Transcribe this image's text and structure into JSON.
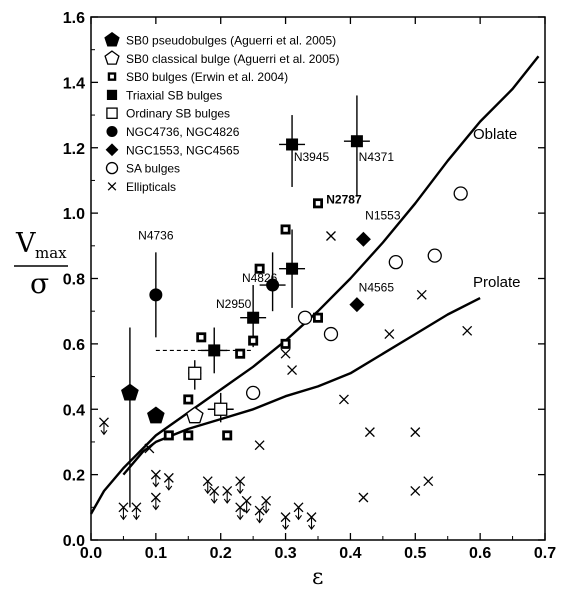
{
  "chart_data": {
    "type": "scatter",
    "xlabel": "ε",
    "ylabel": {
      "numerator": "V",
      "subscript": "max",
      "denominator": "σ"
    },
    "xlim": [
      0.0,
      0.7
    ],
    "ylim": [
      0.0,
      1.6
    ],
    "xticks": [
      "0.0",
      "0.1",
      "0.2",
      "0.3",
      "0.4",
      "0.5",
      "0.6",
      "0.7"
    ],
    "yticks": [
      "0.0",
      "0.2",
      "0.4",
      "0.6",
      "0.8",
      "1.0",
      "1.2",
      "1.4",
      "1.6"
    ],
    "xtick_values": [
      0.0,
      0.1,
      0.2,
      0.3,
      0.4,
      0.5,
      0.6,
      0.7
    ],
    "ytick_values": [
      0.0,
      0.2,
      0.4,
      0.6,
      0.8,
      1.0,
      1.2,
      1.4,
      1.6
    ],
    "grid": false,
    "legend_position": "top-left",
    "legend": [
      {
        "marker": "filled-pentagon",
        "label": "SB0 pseudobulges  (Aguerri et al. 2005)"
      },
      {
        "marker": "open-pentagon",
        "label": "SB0 classical bulge (Aguerri et al. 2005)"
      },
      {
        "marker": "dot-square",
        "label": "SB0 bulges (Erwin et al. 2004)"
      },
      {
        "marker": "filled-square",
        "label": "Triaxial SB bulges"
      },
      {
        "marker": "open-square",
        "label": "Ordinary SB bulges"
      },
      {
        "marker": "filled-circle",
        "label": "NGC4736, NGC4826"
      },
      {
        "marker": "filled-diamond",
        "label": "NGC1553, NGC4565"
      },
      {
        "marker": "open-circle",
        "label": "SA bulges"
      },
      {
        "marker": "cross",
        "label": "Ellipticals"
      }
    ],
    "curves": [
      {
        "label": "Oblate",
        "points": [
          [
            0.0,
            0.08
          ],
          [
            0.02,
            0.15
          ],
          [
            0.05,
            0.22
          ],
          [
            0.08,
            0.28
          ],
          [
            0.1,
            0.32
          ],
          [
            0.15,
            0.39
          ],
          [
            0.2,
            0.46
          ],
          [
            0.25,
            0.53
          ],
          [
            0.3,
            0.61
          ],
          [
            0.35,
            0.7
          ],
          [
            0.4,
            0.8
          ],
          [
            0.45,
            0.91
          ],
          [
            0.5,
            1.03
          ],
          [
            0.55,
            1.16
          ],
          [
            0.6,
            1.28
          ],
          [
            0.65,
            1.38
          ],
          [
            0.69,
            1.48
          ]
        ]
      },
      {
        "label": "Prolate",
        "points": [
          [
            0.05,
            0.2
          ],
          [
            0.08,
            0.27
          ],
          [
            0.1,
            0.3
          ],
          [
            0.15,
            0.34
          ],
          [
            0.2,
            0.37
          ],
          [
            0.25,
            0.4
          ],
          [
            0.3,
            0.44
          ],
          [
            0.35,
            0.47
          ],
          [
            0.4,
            0.51
          ],
          [
            0.45,
            0.57
          ],
          [
            0.5,
            0.63
          ],
          [
            0.55,
            0.69
          ],
          [
            0.6,
            0.74
          ]
        ]
      }
    ],
    "series": [
      {
        "name": "SB0 pseudobulges  (Aguerri et al. 2005)",
        "marker": "filled-pentagon",
        "points": [
          {
            "x": 0.06,
            "y": 0.45,
            "yerr": [
              0.1,
              0.65
            ]
          },
          {
            "x": 0.1,
            "y": 0.38
          }
        ]
      },
      {
        "name": "SB0 classical bulge (Aguerri et al. 2005)",
        "marker": "open-pentagon",
        "points": [
          {
            "x": 0.16,
            "y": 0.38
          }
        ]
      },
      {
        "name": "SB0 bulges (Erwin et al. 2004)",
        "marker": "dot-square",
        "points": [
          {
            "x": 0.12,
            "y": 0.32
          },
          {
            "x": 0.15,
            "y": 0.32
          },
          {
            "x": 0.15,
            "y": 0.43
          },
          {
            "x": 0.17,
            "y": 0.62
          },
          {
            "x": 0.21,
            "y": 0.32
          },
          {
            "x": 0.23,
            "y": 0.57
          },
          {
            "x": 0.25,
            "y": 0.61
          },
          {
            "x": 0.26,
            "y": 0.83
          },
          {
            "x": 0.3,
            "y": 0.6
          },
          {
            "x": 0.3,
            "y": 0.95
          },
          {
            "x": 0.35,
            "y": 0.68
          },
          {
            "x": 0.35,
            "y": 1.03
          }
        ]
      },
      {
        "name": "Triaxial SB bulges",
        "marker": "filled-square",
        "points": [
          {
            "x": 0.19,
            "y": 0.58,
            "xerr": [
              0.17,
              0.21
            ],
            "yerr": [
              0.51,
              0.65
            ]
          },
          {
            "x": 0.25,
            "y": 0.68,
            "xerr": [
              0.23,
              0.27
            ],
            "yerr": [
              0.59,
              0.78
            ]
          },
          {
            "x": 0.31,
            "y": 0.83,
            "xerr": [
              0.29,
              0.33
            ],
            "yerr": [
              0.71,
              0.95
            ]
          },
          {
            "x": 0.31,
            "y": 1.21,
            "xerr": [
              0.29,
              0.33
            ],
            "yerr": [
              1.08,
              1.3
            ]
          },
          {
            "x": 0.41,
            "y": 1.22,
            "xerr": [
              0.39,
              0.43
            ],
            "yerr": [
              1.05,
              1.36
            ]
          }
        ]
      },
      {
        "name": "Ordinary SB bulges",
        "marker": "open-square",
        "points": [
          {
            "x": 0.16,
            "y": 0.51,
            "xerr": [
              0.15,
              0.17
            ],
            "yerr": [
              0.46,
              0.55
            ]
          },
          {
            "x": 0.2,
            "y": 0.4,
            "xerr": [
              0.18,
              0.22
            ],
            "yerr": [
              0.36,
              0.45
            ]
          }
        ]
      },
      {
        "name": "NGC4736, NGC4826",
        "marker": "filled-circle",
        "points": [
          {
            "x": 0.1,
            "y": 0.75,
            "yerr": [
              0.62,
              0.88
            ]
          },
          {
            "x": 0.28,
            "y": 0.78,
            "xerr": [
              0.26,
              0.3
            ],
            "yerr": [
              0.7,
              0.88
            ]
          }
        ]
      },
      {
        "name": "NGC1553, NGC4565",
        "marker": "filled-diamond",
        "points": [
          {
            "x": 0.42,
            "y": 0.92
          },
          {
            "x": 0.41,
            "y": 0.72
          }
        ]
      },
      {
        "name": "SA bulges",
        "marker": "open-circle",
        "points": [
          {
            "x": 0.25,
            "y": 0.45
          },
          {
            "x": 0.33,
            "y": 0.68
          },
          {
            "x": 0.37,
            "y": 0.63
          },
          {
            "x": 0.47,
            "y": 0.85
          },
          {
            "x": 0.53,
            "y": 0.87
          },
          {
            "x": 0.57,
            "y": 1.06
          }
        ]
      },
      {
        "name": "Ellipticals",
        "marker": "cross",
        "points": [
          {
            "x": 0.37,
            "y": 0.93
          },
          {
            "x": 0.39,
            "y": 0.43
          },
          {
            "x": 0.43,
            "y": 0.33
          },
          {
            "x": 0.42,
            "y": 0.13
          },
          {
            "x": 0.46,
            "y": 0.63
          },
          {
            "x": 0.5,
            "y": 0.33
          },
          {
            "x": 0.51,
            "y": 0.75
          },
          {
            "x": 0.5,
            "y": 0.15
          },
          {
            "x": 0.52,
            "y": 0.18
          },
          {
            "x": 0.58,
            "y": 0.64
          },
          {
            "x": 0.31,
            "y": 0.52
          },
          {
            "x": 0.3,
            "y": 0.57
          },
          {
            "x": 0.09,
            "y": 0.28
          },
          {
            "x": 0.26,
            "y": 0.29
          },
          {
            "x": 0.02,
            "y": 0.36,
            "limit": "up"
          },
          {
            "x": 0.05,
            "y": 0.1,
            "limit": "up"
          },
          {
            "x": 0.07,
            "y": 0.1,
            "limit": "up"
          },
          {
            "x": 0.1,
            "y": 0.2,
            "limit": "up"
          },
          {
            "x": 0.1,
            "y": 0.13,
            "limit": "up"
          },
          {
            "x": 0.12,
            "y": 0.19,
            "limit": "up"
          },
          {
            "x": 0.18,
            "y": 0.18,
            "limit": "up"
          },
          {
            "x": 0.19,
            "y": 0.15,
            "limit": "up"
          },
          {
            "x": 0.21,
            "y": 0.15,
            "limit": "up"
          },
          {
            "x": 0.23,
            "y": 0.18,
            "limit": "up"
          },
          {
            "x": 0.23,
            "y": 0.1,
            "limit": "up"
          },
          {
            "x": 0.24,
            "y": 0.12,
            "limit": "up"
          },
          {
            "x": 0.26,
            "y": 0.09,
            "limit": "up"
          },
          {
            "x": 0.27,
            "y": 0.12,
            "limit": "up"
          },
          {
            "x": 0.3,
            "y": 0.07,
            "limit": "up"
          },
          {
            "x": 0.32,
            "y": 0.1,
            "limit": "up"
          },
          {
            "x": 0.34,
            "y": 0.07,
            "limit": "up"
          }
        ]
      }
    ],
    "dashed_line": {
      "x": [
        0.1,
        0.25
      ],
      "y": 0.58
    },
    "curve_labels": [
      "Oblate",
      "Prolate"
    ],
    "annotations": [
      {
        "text": "N4736",
        "x": 0.1,
        "y": 0.92,
        "bold": false
      },
      {
        "text": "N4826",
        "x": 0.26,
        "y": 0.79,
        "bold": false
      },
      {
        "text": "N2950",
        "x": 0.22,
        "y": 0.71,
        "bold": false
      },
      {
        "text": "N3945",
        "x": 0.34,
        "y": 1.16,
        "bold": false
      },
      {
        "text": "N4371",
        "x": 0.44,
        "y": 1.16,
        "bold": false
      },
      {
        "text": "N2787",
        "x": 0.39,
        "y": 1.03,
        "bold": true
      },
      {
        "text": "N1553",
        "x": 0.45,
        "y": 0.98,
        "bold": false
      },
      {
        "text": "N4565",
        "x": 0.44,
        "y": 0.76,
        "bold": false
      }
    ]
  }
}
